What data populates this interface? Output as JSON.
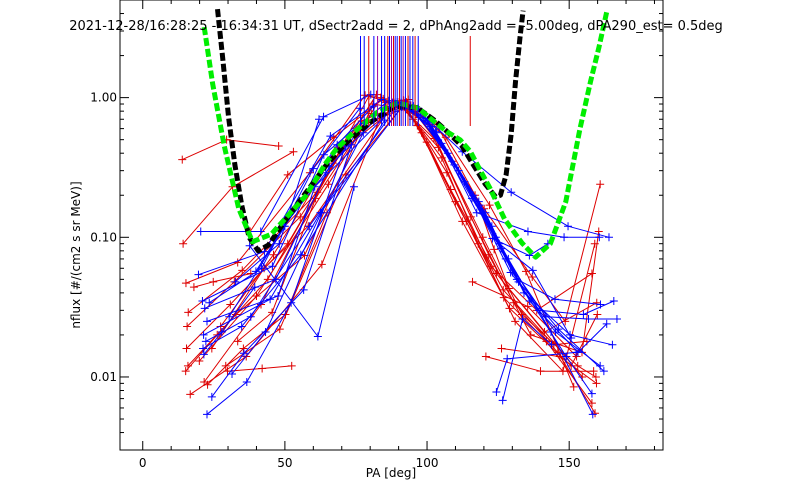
{
  "chart_data": {
    "type": "scatter",
    "title": "2021-12-28/16:28:25 - 16:34:31 UT, dSectr2add = 2, dPhAng2add = -5.00deg, dPA290_est=   0.5deg",
    "xlabel": "PA [deg]",
    "ylabel": "nflux [#/(cm2 s sr MeV)]",
    "xlim": [
      -8,
      183
    ],
    "ylim": [
      0.003,
      5.0
    ],
    "yscale": "log",
    "grid": false,
    "x_ticks": [
      0,
      50,
      100,
      150
    ],
    "x_tick_labels": [
      "0",
      "50",
      "100",
      "150"
    ],
    "y_ticks": [
      0.01,
      0.1,
      1.0
    ],
    "y_tick_labels": [
      "0.01",
      "0.10",
      "1.00"
    ],
    "colors": {
      "blue": "#0000ff",
      "red": "#dd0000",
      "black": "#000000",
      "green": "#00ee00",
      "purple": "#a000a0"
    },
    "top_marker_lines": [
      {
        "x": 76.6,
        "color": "blue"
      },
      {
        "x": 77.9,
        "color": "blue"
      },
      {
        "x": 79.5,
        "color": "red"
      },
      {
        "x": 81.3,
        "color": "blue"
      },
      {
        "x": 82.6,
        "color": "purple"
      },
      {
        "x": 84.0,
        "color": "blue"
      },
      {
        "x": 85.1,
        "color": "blue"
      },
      {
        "x": 86.2,
        "color": "red"
      },
      {
        "x": 86.8,
        "color": "blue"
      },
      {
        "x": 87.5,
        "color": "purple"
      },
      {
        "x": 88.2,
        "color": "red"
      },
      {
        "x": 88.8,
        "color": "blue"
      },
      {
        "x": 89.5,
        "color": "blue"
      },
      {
        "x": 90.3,
        "color": "red"
      },
      {
        "x": 90.9,
        "color": "blue"
      },
      {
        "x": 91.6,
        "color": "purple"
      },
      {
        "x": 92.4,
        "color": "blue"
      },
      {
        "x": 93.3,
        "color": "red"
      },
      {
        "x": 94.0,
        "color": "blue"
      },
      {
        "x": 95.0,
        "color": "blue"
      },
      {
        "x": 95.8,
        "color": "red"
      },
      {
        "x": 96.9,
        "color": "blue"
      },
      {
        "x": 115.2,
        "color": "red"
      }
    ],
    "series": [
      {
        "color": "green",
        "style": "dashed-thick",
        "x": [
          21.6,
          24.6,
          28.7,
          33.8,
          38.6,
          45.2,
          57.5,
          64.4,
          68.2,
          73.6,
          82.3,
          89.6,
          96.9,
          103.0,
          107.0,
          111.6,
          115.3,
          118.4,
          122.1,
          127.3,
          133.4,
          138.2,
          143.4,
          148.8,
          153.8,
          157.5,
          160.5,
          163.3
        ],
        "y": [
          3.2,
          1.25,
          0.45,
          0.16,
          0.093,
          0.105,
          0.2,
          0.34,
          0.43,
          0.55,
          0.78,
          0.92,
          0.84,
          0.66,
          0.57,
          0.5,
          0.41,
          0.31,
          0.225,
          0.135,
          0.091,
          0.072,
          0.09,
          0.18,
          0.6,
          1.3,
          2.3,
          4.2
        ]
      },
      {
        "color": "black",
        "style": "dashed-thick",
        "x": [
          26.3,
          28.1,
          30.2,
          32.4,
          34.8,
          37.4,
          40.6,
          44.2,
          49.9,
          57.5,
          64.6,
          70.9,
          79.8,
          88.5,
          96.4,
          103.0,
          107.5,
          112.3,
          116.3,
          120.5,
          124.1,
          125.8,
          127.8,
          129.6,
          131.1,
          132.7,
          133.8
        ],
        "y": [
          4.3,
          1.95,
          0.72,
          0.33,
          0.17,
          0.1,
          0.08,
          0.088,
          0.13,
          0.21,
          0.33,
          0.46,
          0.66,
          0.86,
          0.85,
          0.68,
          0.56,
          0.45,
          0.33,
          0.24,
          0.195,
          0.2,
          0.28,
          0.55,
          1.3,
          2.7,
          4.2
        ]
      },
      {
        "color": "red",
        "x": [
          13.9,
          29.5,
          47.8
        ],
        "y": [
          0.36,
          0.5,
          0.45
        ]
      },
      {
        "color": "red",
        "x": [
          14.2,
          31.6,
          53.0
        ],
        "y": [
          0.09,
          0.23,
          0.41
        ]
      },
      {
        "color": "red",
        "x": [
          15.2,
          33.4,
          58.8,
          78.2,
          89.2
        ],
        "y": [
          0.047,
          0.066,
          0.29,
          1.04,
          0.9
        ]
      },
      {
        "color": "red",
        "x": [
          16.0,
          35.0,
          61.4,
          79.6,
          90.3
        ],
        "y": [
          0.029,
          0.058,
          0.21,
          1.03,
          0.86
        ]
      },
      {
        "color": "red",
        "x": [
          15.6,
          32.2,
          55.4,
          77.0,
          92.7
        ],
        "y": [
          0.023,
          0.048,
          0.14,
          0.68,
          0.93
        ]
      },
      {
        "color": "red",
        "x": [
          15.4,
          30.8,
          51.0,
          74.6,
          94.3
        ],
        "y": [
          0.016,
          0.033,
          0.09,
          0.6,
          0.88
        ]
      },
      {
        "color": "red",
        "x": [
          15.9,
          32.8,
          56.9,
          81.0,
          95.8
        ],
        "y": [
          0.012,
          0.028,
          0.074,
          0.9,
          0.8
        ]
      },
      {
        "color": "red",
        "x": [
          15.1,
          26.2,
          44.0,
          70.2,
          88.0
        ],
        "y": [
          0.011,
          0.02,
          0.05,
          0.42,
          0.82
        ]
      },
      {
        "color": "red",
        "x": [
          16.7,
          36.4,
          63.0,
          85.6
        ],
        "y": [
          0.0075,
          0.014,
          0.064,
          0.92
        ]
      },
      {
        "color": "red",
        "x": [
          19.9,
          40.0,
          65.3,
          83.7
        ],
        "y": [
          0.013,
          0.038,
          0.24,
          1.0
        ]
      },
      {
        "color": "red",
        "x": [
          21.6,
          41.6,
          66.9,
          82.2
        ],
        "y": [
          0.0092,
          0.033,
          0.34,
          1.05
        ]
      },
      {
        "color": "red",
        "x": [
          24.3,
          42.7,
          58.2,
          87.2
        ],
        "y": [
          0.016,
          0.06,
          0.12,
          0.84
        ]
      },
      {
        "color": "red",
        "x": [
          27.4,
          46.0,
          68.6,
          91.8
        ],
        "y": [
          0.023,
          0.075,
          0.44,
          0.95
        ]
      },
      {
        "color": "red",
        "x": [
          29.2,
          48.2,
          71.5,
          93.4
        ],
        "y": [
          0.012,
          0.022,
          0.28,
          0.97
        ]
      },
      {
        "color": "red",
        "x": [
          29.8,
          42.0,
          52.4
        ],
        "y": [
          0.011,
          0.0115,
          0.012
        ]
      },
      {
        "color": "red",
        "x": [
          22.8,
          35.4,
          50.2,
          64.8
        ],
        "y": [
          0.0088,
          0.016,
          0.028,
          0.15
        ]
      },
      {
        "color": "red",
        "x": [
          37.8,
          51.0,
          67.2,
          84.6
        ],
        "y": [
          0.11,
          0.28,
          0.52,
          0.98
        ]
      },
      {
        "color": "red",
        "x": [
          33.4,
          45.5,
          60.8,
          80.4
        ],
        "y": [
          0.018,
          0.029,
          0.19,
          0.77
        ]
      },
      {
        "color": "red",
        "x": [
          18.0,
          24.8,
          38.0
        ],
        "y": [
          0.044,
          0.048,
          0.055
        ]
      },
      {
        "color": "red",
        "x": [
          88.7,
          100.8,
          115.4,
          130.5,
          146.0,
          159.1
        ],
        "y": [
          0.92,
          0.64,
          0.14,
          0.034,
          0.015,
          0.0055
        ]
      },
      {
        "color": "red",
        "x": [
          89.8,
          102.4,
          119.6,
          133.4,
          153.0,
          159.4
        ],
        "y": [
          0.9,
          0.51,
          0.1,
          0.028,
          0.012,
          0.01
        ]
      },
      {
        "color": "red",
        "x": [
          91.0,
          104.0,
          121.7,
          136.5,
          154.5,
          160.4
        ],
        "y": [
          0.86,
          0.44,
          0.075,
          0.02,
          0.015,
          0.11
        ]
      },
      {
        "color": "red",
        "x": [
          92.4,
          105.2,
          118.0,
          131.0,
          147.8,
          159.0
        ],
        "y": [
          0.83,
          0.37,
          0.09,
          0.025,
          0.011,
          0.09
        ]
      },
      {
        "color": "red",
        "x": [
          93.8,
          107.0,
          122.4,
          138.6,
          158.0
        ],
        "y": [
          0.78,
          0.29,
          0.062,
          0.03,
          0.055
        ]
      },
      {
        "color": "red",
        "x": [
          95.1,
          108.3,
          124.4,
          141.3,
          159.7
        ],
        "y": [
          0.7,
          0.22,
          0.055,
          0.021,
          0.034
        ]
      },
      {
        "color": "red",
        "x": [
          96.6,
          110.0,
          126.8,
          144.6,
          156.2
        ],
        "y": [
          0.63,
          0.18,
          0.042,
          0.017,
          0.018
        ]
      },
      {
        "color": "red",
        "x": [
          98.1,
          112.4,
          129.0,
          150.7,
          159.9
        ],
        "y": [
          0.56,
          0.13,
          0.031,
          0.012,
          0.028
        ]
      },
      {
        "color": "red",
        "x": [
          99.9,
          113.8,
          127.0,
          142.0,
          158.0
        ],
        "y": [
          0.48,
          0.13,
          0.037,
          0.018,
          0.0065
        ]
      },
      {
        "color": "red",
        "x": [
          97.0,
          108.8,
          120.1,
          137.0,
          148.6,
          160.9
        ],
        "y": [
          0.72,
          0.35,
          0.16,
          0.052,
          0.025,
          0.24
        ]
      },
      {
        "color": "red",
        "x": [
          90.2,
          103.4,
          116.9,
          123.6,
          128.8,
          154.6
        ],
        "y": [
          0.93,
          0.64,
          0.2,
          0.082,
          0.043,
          0.01
        ]
      },
      {
        "color": "red",
        "x": [
          91.7,
          106.6,
          122.0,
          134.8,
          151.6
        ],
        "y": [
          0.96,
          0.52,
          0.17,
          0.057,
          0.0085
        ]
      },
      {
        "color": "red",
        "x": [
          120.7,
          139.9,
          158.6
        ],
        "y": [
          0.014,
          0.011,
          0.011
        ]
      },
      {
        "color": "red",
        "x": [
          126.2,
          146.7,
          159.6
        ],
        "y": [
          0.016,
          0.014,
          0.009
        ]
      },
      {
        "color": "red",
        "x": [
          116.0,
          135.4,
          152.6
        ],
        "y": [
          0.048,
          0.032,
          0.014
        ]
      },
      {
        "color": "blue",
        "x": [
          20.4,
          41.5,
          63.6,
          80.2
        ],
        "y": [
          0.11,
          0.11,
          0.73,
          1.05
        ]
      },
      {
        "color": "blue",
        "x": [
          19.6,
          42.8,
          66.0,
          84.0
        ],
        "y": [
          0.054,
          0.079,
          0.53,
          0.97
        ]
      },
      {
        "color": "blue",
        "x": [
          21.0,
          45.6,
          63.7,
          86.4
        ],
        "y": [
          0.035,
          0.062,
          0.39,
          0.95
        ]
      },
      {
        "color": "blue",
        "x": [
          21.8,
          46.8,
          65.6,
          87.8
        ],
        "y": [
          0.031,
          0.05,
          0.32,
          0.92
        ]
      },
      {
        "color": "blue",
        "x": [
          22.6,
          47.6,
          60.5,
          89.6
        ],
        "y": [
          0.025,
          0.038,
          0.23,
          0.9
        ]
      },
      {
        "color": "blue",
        "x": [
          21.4,
          44.8,
          62.5,
          91.2
        ],
        "y": [
          0.02,
          0.036,
          0.15,
          0.86
        ]
      },
      {
        "color": "blue",
        "x": [
          22.2,
          38.0,
          58.6,
          88.3
        ],
        "y": [
          0.018,
          0.027,
          0.12,
          0.8
        ]
      },
      {
        "color": "blue",
        "x": [
          21.2,
          34.8,
          55.6,
          85.1
        ],
        "y": [
          0.016,
          0.023,
          0.075,
          0.69
        ]
      },
      {
        "color": "blue",
        "x": [
          22.6,
          36.6,
          52.2,
          71.3
        ],
        "y": [
          0.0054,
          0.0092,
          0.034,
          0.45
        ]
      },
      {
        "color": "blue",
        "x": [
          24.3,
          35.6,
          56.6,
          73.4
        ],
        "y": [
          0.0072,
          0.0148,
          0.042,
          0.46
        ]
      },
      {
        "color": "blue",
        "x": [
          21.5,
          27.8,
          39.4
        ],
        "y": [
          0.0145,
          0.021,
          0.044
        ]
      },
      {
        "color": "blue",
        "x": [
          23.4,
          41.8,
          60.0,
          76.4
        ],
        "y": [
          0.034,
          0.06,
          0.31,
          0.84
        ]
      },
      {
        "color": "blue",
        "x": [
          30.4,
          50.0,
          68.4,
          81.2
        ],
        "y": [
          0.027,
          0.12,
          0.46,
          0.87
        ]
      },
      {
        "color": "blue",
        "x": [
          32.6,
          48.0,
          62.0
        ],
        "y": [
          0.048,
          0.09,
          0.7
        ]
      },
      {
        "color": "blue",
        "x": [
          39.8,
          49.6,
          64.4,
          78.0
        ],
        "y": [
          0.057,
          0.12,
          0.29,
          0.65
        ]
      },
      {
        "color": "blue",
        "x": [
          37.6,
          61.6,
          74.3
        ],
        "y": [
          0.087,
          0.0195,
          0.23
        ]
      },
      {
        "color": "blue",
        "x": [
          31.4,
          43.2,
          62.8,
          77.6
        ],
        "y": [
          0.0105,
          0.021,
          0.15,
          0.56
        ]
      },
      {
        "color": "blue",
        "x": [
          88.2,
          100.2,
          116.2,
          128.6,
          143.6,
          158.3
        ],
        "y": [
          0.95,
          0.69,
          0.2,
          0.07,
          0.021,
          0.0054
        ]
      },
      {
        "color": "blue",
        "x": [
          89.5,
          101.8,
          118.4,
          130.1,
          149.0,
          158.0
        ],
        "y": [
          0.93,
          0.62,
          0.17,
          0.056,
          0.014,
          0.0076
        ]
      },
      {
        "color": "blue",
        "x": [
          90.9,
          103.3,
          120.5,
          132.2,
          146.2,
          162.2
        ],
        "y": [
          0.92,
          0.56,
          0.15,
          0.048,
          0.022,
          0.011
        ]
      },
      {
        "color": "blue",
        "x": [
          92.6,
          105.1,
          122.8,
          134.1,
          150.3,
          165.2
        ],
        "y": [
          0.9,
          0.47,
          0.12,
          0.04,
          0.02,
          0.017
        ]
      },
      {
        "color": "blue",
        "x": [
          94.1,
          107.3,
          124.2,
          136.1,
          153.1,
          163.2
        ],
        "y": [
          0.86,
          0.4,
          0.1,
          0.035,
          0.015,
          0.024
        ]
      },
      {
        "color": "blue",
        "x": [
          95.8,
          109.6,
          126.0,
          139.4,
          155.0,
          165.7
        ],
        "y": [
          0.8,
          0.33,
          0.083,
          0.03,
          0.028,
          0.035
        ]
      },
      {
        "color": "blue",
        "x": [
          97.6,
          111.1,
          127.7,
          141.8,
          156.8,
          166.8
        ],
        "y": [
          0.76,
          0.3,
          0.07,
          0.027,
          0.026,
          0.026
        ]
      },
      {
        "color": "blue",
        "x": [
          99.5,
          113.2,
          129.4,
          145.2,
          160.9
        ],
        "y": [
          0.71,
          0.25,
          0.056,
          0.021,
          0.012
        ]
      },
      {
        "color": "blue",
        "x": [
          101.0,
          115.8,
          125.4,
          137.2,
          150.7
        ],
        "y": [
          0.62,
          0.19,
          0.09,
          0.058,
          0.019
        ]
      },
      {
        "color": "blue",
        "x": [
          103.0,
          117.5,
          135.5,
          148.2,
          160.6
        ],
        "y": [
          0.57,
          0.15,
          0.11,
          0.1,
          0.1
        ]
      },
      {
        "color": "blue",
        "x": [
          95.2,
          112.4,
          129.6,
          149.6,
          164.0
        ],
        "y": [
          0.87,
          0.41,
          0.21,
          0.12,
          0.1
        ]
      },
      {
        "color": "blue",
        "x": [
          96.9,
          118.2,
          131.6,
          145.0,
          161.0
        ],
        "y": [
          0.84,
          0.18,
          0.05,
          0.036,
          0.033
        ]
      },
      {
        "color": "blue",
        "x": [
          123.0,
          136.0,
          142.5
        ],
        "y": [
          0.098,
          0.074,
          0.09
        ]
      },
      {
        "color": "blue",
        "x": [
          124.4,
          128.2,
          152.4
        ],
        "y": [
          0.0078,
          0.0135,
          0.015
        ]
      },
      {
        "color": "blue",
        "x": [
          126.6,
          133.6,
          143.8
        ],
        "y": [
          0.0068,
          0.026,
          0.017
        ]
      }
    ]
  }
}
